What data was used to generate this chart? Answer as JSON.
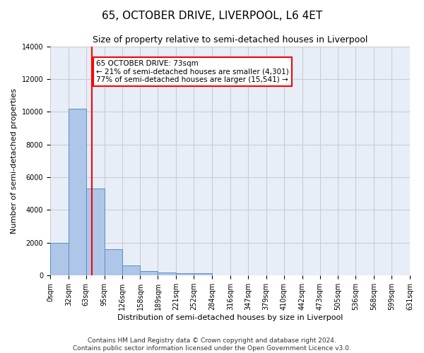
{
  "title": "65, OCTOBER DRIVE, LIVERPOOL, L6 4ET",
  "subtitle": "Size of property relative to semi-detached houses in Liverpool",
  "xlabel": "Distribution of semi-detached houses by size in Liverpool",
  "ylabel": "Number of semi-detached properties",
  "footnote": "Contains HM Land Registry data © Crown copyright and database right 2024.\nContains public sector information licensed under the Open Government Licence v3.0.",
  "property_size": 73,
  "property_label": "65 OCTOBER DRIVE: 73sqm",
  "pct_smaller": 21,
  "count_smaller": 4301,
  "pct_larger": 77,
  "count_larger": 15541,
  "bin_edges": [
    0,
    32,
    63,
    95,
    126,
    158,
    189,
    221,
    252,
    284,
    316,
    347,
    379,
    410,
    442,
    473,
    505,
    536,
    568,
    599,
    631
  ],
  "bin_labels": [
    "0sqm",
    "32sqm",
    "63sqm",
    "95sqm",
    "126sqm",
    "158sqm",
    "189sqm",
    "221sqm",
    "252sqm",
    "284sqm",
    "316sqm",
    "347sqm",
    "379sqm",
    "410sqm",
    "442sqm",
    "473sqm",
    "505sqm",
    "536sqm",
    "568sqm",
    "599sqm",
    "631sqm"
  ],
  "bar_heights": [
    2000,
    10200,
    5300,
    1600,
    600,
    280,
    180,
    150,
    130,
    0,
    0,
    0,
    0,
    0,
    0,
    0,
    0,
    0,
    0,
    0
  ],
  "bar_color": "#aec6e8",
  "bar_edge_color": "#5a8fc0",
  "vline_x": 73,
  "vline_color": "red",
  "ylim": [
    0,
    14000
  ],
  "yticks": [
    0,
    2000,
    4000,
    6000,
    8000,
    10000,
    12000,
    14000
  ],
  "annotation_box_color": "white",
  "annotation_box_edge": "red",
  "grid_color": "#cccccc",
  "bg_color": "#e8eef8",
  "title_fontsize": 11,
  "subtitle_fontsize": 9,
  "axis_label_fontsize": 8,
  "tick_fontsize": 7,
  "annotation_fontsize": 7.5,
  "footnote_fontsize": 6.5
}
